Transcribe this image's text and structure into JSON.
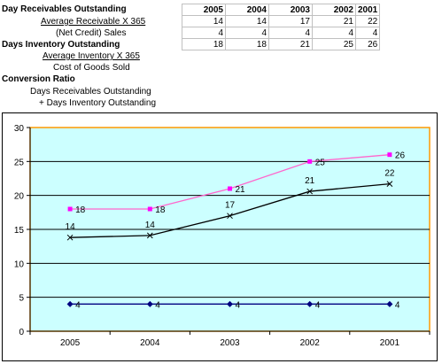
{
  "labels": {
    "dro_heading": "Day Receivables Outstanding",
    "dro_numerator": "Average Receivable X 365",
    "dro_denominator": "(Net Credit) Sales",
    "dio_heading": "Days Inventory Outstanding",
    "dio_numerator": "Average Inventory X 365",
    "dio_denominator": "Cost of Goods Sold",
    "ccr_heading": "Conversion Ratio",
    "ccr_line1": "Days Receivables Outstanding",
    "ccr_line2": "+ Days Inventory Outstanding"
  },
  "table": {
    "years": [
      "2005",
      "2004",
      "2003",
      "2002",
      "2001"
    ],
    "rows": [
      [
        "14",
        "14",
        "17",
        "21",
        "22"
      ],
      [
        "4",
        "4",
        "4",
        "4",
        "4"
      ],
      [
        "18",
        "18",
        "21",
        "25",
        "26"
      ]
    ]
  },
  "colors": {
    "plot_bg": "#ccffff",
    "chart_border": "#ff9900",
    "series_top": "#ff00ff",
    "series_top_line": "#ff66cc",
    "series_mid": "#000000",
    "series_bottom": "#000080"
  },
  "chart_data": {
    "type": "line",
    "categories": [
      "2005",
      "2004",
      "2003",
      "2002",
      "2001"
    ],
    "ylim": [
      0,
      30
    ],
    "yticks": [
      "0",
      "5",
      "10",
      "15",
      "20",
      "25",
      "30"
    ],
    "grid": true,
    "series": [
      {
        "key": "top",
        "marker": "square",
        "values": [
          18,
          18,
          21,
          25,
          26
        ],
        "labels": [
          "18",
          "18",
          "21",
          "25",
          "26"
        ]
      },
      {
        "key": "mid",
        "marker": "x",
        "values": [
          13.8,
          14.1,
          17,
          20.6,
          21.7
        ],
        "labels": [
          "14",
          "14",
          "17",
          "21",
          "22"
        ]
      },
      {
        "key": "bottom",
        "marker": "diamond",
        "values": [
          4,
          4,
          4,
          4,
          4
        ],
        "labels": [
          "4",
          "4",
          "4",
          "4",
          "4"
        ]
      }
    ]
  }
}
